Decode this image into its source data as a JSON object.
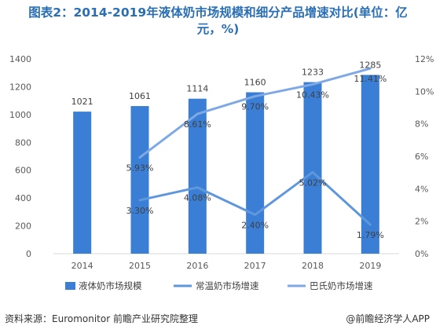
{
  "title_line1": "图表2：2014-2019年液体奶市场规模和细分产品增速对比(单位：亿",
  "title_line2": "元，%)",
  "footer": {
    "source": "资料来源：Euromonitor 前瞻产业研究院整理",
    "brand": "@前瞻经济学人APP"
  },
  "colors": {
    "bar": "#3a7fd5",
    "line_room": "#5f97dc",
    "line_pasteur": "#7ea9e4",
    "title": "#2a6fb5"
  },
  "chart_data": {
    "type": "bar",
    "categories": [
      "2014",
      "2015",
      "2016",
      "2017",
      "2018",
      "2019"
    ],
    "series": [
      {
        "name": "液体奶市场规模",
        "type": "bar",
        "axis": "left",
        "values": [
          1021,
          1061,
          1114,
          1160,
          1233,
          1285
        ],
        "labels": [
          "1021",
          "1061",
          "1114",
          "1160",
          "1233",
          "1285"
        ]
      },
      {
        "name": "常温奶市场增速",
        "type": "line",
        "axis": "right",
        "values": [
          null,
          3.3,
          4.08,
          2.4,
          5.02,
          1.79
        ],
        "labels": [
          "",
          "3.30%",
          "4.08%",
          "2.40%",
          "5.02%",
          "1.79%"
        ]
      },
      {
        "name": "巴氏奶市场增速",
        "type": "line",
        "axis": "right",
        "values": [
          null,
          5.93,
          8.61,
          9.7,
          10.43,
          11.41
        ],
        "labels": [
          "",
          "5.93%",
          "8.61%",
          "9.70%",
          "10.43%",
          "11.41%"
        ]
      }
    ],
    "y_left": {
      "min": 0,
      "max": 1400,
      "step": 200,
      "ticks": [
        "0",
        "200",
        "400",
        "600",
        "800",
        "1000",
        "1200",
        "1400"
      ]
    },
    "y_right": {
      "min": 0,
      "max": 12,
      "step": 2,
      "ticks": [
        "0%",
        "2%",
        "4%",
        "6%",
        "8%",
        "10%",
        "12%"
      ]
    },
    "grid": false,
    "legend_position": "bottom"
  }
}
